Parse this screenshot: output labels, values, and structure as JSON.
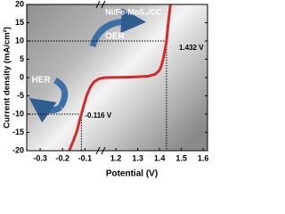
{
  "chart_data": {
    "type": "line",
    "title": "Ni/Fe-MoS₂/CC",
    "x_label": "Potential (V)",
    "y_label": "Current density (mA/cm²)",
    "annotations": [
      "OER",
      "HER"
    ],
    "x": [
      -0.17,
      -0.15,
      -0.135,
      -0.125,
      -0.116,
      -0.105,
      -0.09,
      -0.075,
      -0.06,
      -0.045,
      -0.035,
      1.15,
      1.2,
      1.25,
      1.3,
      1.35,
      1.38,
      1.4,
      1.41,
      1.42,
      1.428,
      1.432,
      1.436,
      1.44,
      1.445,
      1.45
    ],
    "values": [
      -20,
      -17,
      -14.5,
      -12,
      -10,
      -7.5,
      -4.5,
      -2.5,
      -1.2,
      -0.6,
      -0.3,
      0,
      0.05,
      0.1,
      0.2,
      0.4,
      0.9,
      2,
      3.5,
      6,
      8.5,
      10,
      12.5,
      15,
      17.5,
      20
    ],
    "color": "#d42a2a",
    "xlim": [
      -0.36,
      1.62
    ],
    "xbreak": [
      -0.03,
      1.13
    ],
    "xticks": [
      -0.3,
      -0.2,
      -0.1,
      1.2,
      1.3,
      1.4,
      1.5,
      1.6
    ],
    "ylim": [
      -20,
      20
    ],
    "yticks": [
      -20,
      -15,
      -10,
      -5,
      0,
      5,
      10,
      15,
      20
    ],
    "guides": [
      {
        "x": 1.432,
        "y": 10,
        "label": "1.432 V"
      },
      {
        "x": -0.116,
        "y": -10,
        "label": "-0.116 V"
      }
    ]
  }
}
